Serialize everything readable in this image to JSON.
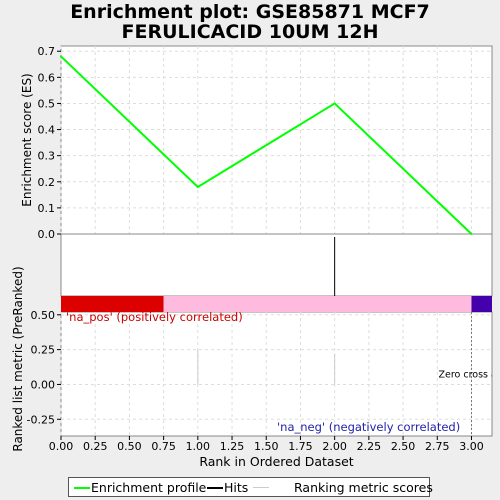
{
  "title": "Enrichment plot: GSE85871 MCF7 FERULICACID 10UM 12H",
  "chart_data": {
    "type": "line",
    "title": "Enrichment plot: GSE85871 MCF7 FERULICACID 10UM 12H",
    "xlabel": "Rank in Ordered Dataset",
    "xlim": [
      0,
      3.15
    ],
    "x_ticks": [
      "0.00",
      "0.25",
      "0.50",
      "0.75",
      "1.00",
      "1.25",
      "1.50",
      "1.75",
      "2.00",
      "2.25",
      "2.50",
      "2.75",
      "3.00"
    ],
    "grid": true,
    "es_panel": {
      "ylabel": "Enrichment score (ES)",
      "ylim": [
        0,
        0.72
      ],
      "y_ticks": [
        "0.0",
        "0.1",
        "0.2",
        "0.3",
        "0.4",
        "0.5",
        "0.6",
        "0.7"
      ],
      "series": [
        {
          "name": "Enrichment profile",
          "color": "#00ff00",
          "x": [
            0,
            1,
            2,
            3
          ],
          "y": [
            0.68,
            0.18,
            0.5,
            0.0
          ]
        }
      ]
    },
    "hits_panel": {
      "hits": [
        2
      ],
      "color": "#000000"
    },
    "ranking_panel": {
      "ylabel": "Ranked list metric (PreRanked)",
      "ylim": [
        -0.37,
        0.52
      ],
      "y_ticks": [
        "0.50",
        "0.25",
        "0.00",
        "-0.25"
      ],
      "bars": [
        {
          "x": 1,
          "value": 0.25
        },
        {
          "x": 2,
          "value": 0.22
        }
      ],
      "color_bar": [
        {
          "from": 0,
          "to": 0.75,
          "color": "#dd0000"
        },
        {
          "from": 0.75,
          "to": 3.0,
          "color": "#ffbbdd"
        },
        {
          "from": 3.0,
          "to": 3.15,
          "color": "#4400aa"
        }
      ],
      "zero_cross": 3.0,
      "zero_cross_label": "Zero cross at 3",
      "pos_label": "'na_pos' (positively correlated)",
      "neg_label": "'na_neg' (negatively correlated)",
      "pos_color": "#cc0000",
      "neg_color": "#2222aa"
    },
    "legend": [
      {
        "label": "Enrichment profile",
        "color": "#00ff00"
      },
      {
        "label": "Hits",
        "color": "#000000"
      },
      {
        "label": "Ranking metric scores",
        "color": "#cccccc"
      }
    ]
  }
}
